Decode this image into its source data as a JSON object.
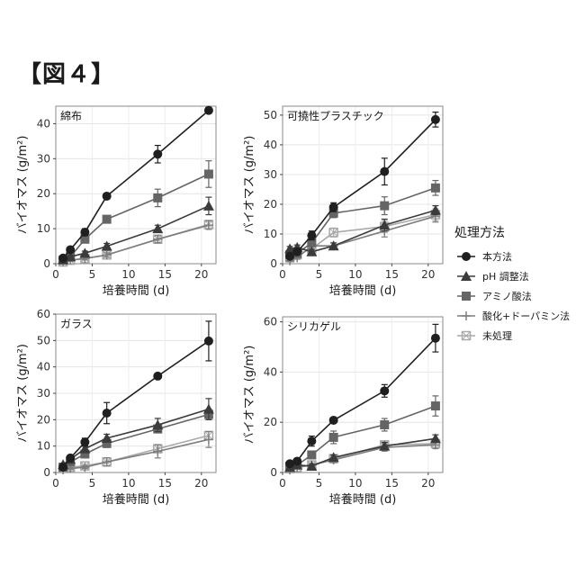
{
  "figure_label": "【図４】",
  "legend": {
    "title": "処理方法",
    "items": [
      {
        "name": "本方法",
        "marker": "circle",
        "color": "#1f1f1f"
      },
      {
        "name": "pH 調整法",
        "marker": "triangle",
        "color": "#3b3b3b"
      },
      {
        "name": "アミノ酸法",
        "marker": "square",
        "color": "#656565"
      },
      {
        "name": "酸化+ドーパミン法",
        "marker": "plus",
        "color": "#7d7d7d"
      },
      {
        "name": "未処理",
        "marker": "square-x",
        "color": "#a9a9a9"
      }
    ]
  },
  "chart_data": [
    {
      "type": "line",
      "title": "綿布",
      "xlabel": "培養時間 (d)",
      "ylabel": "バイオマス (g/m²)",
      "xlim": [
        0,
        22
      ],
      "ylim": [
        0,
        45
      ],
      "xticks": [
        0,
        5,
        10,
        15,
        20
      ],
      "yticks": [
        0,
        10,
        20,
        30,
        40
      ],
      "grid": true,
      "x": [
        1,
        2,
        4,
        7,
        14,
        21
      ],
      "series": [
        {
          "name": "本方法",
          "values": [
            1.6,
            4,
            9,
            19.3,
            31.3,
            43.8
          ],
          "err": [
            0.3,
            0.5,
            1,
            0.8,
            2.5,
            0.5
          ]
        },
        {
          "name": "pH 調整法",
          "values": [
            1.2,
            2,
            3,
            5,
            10,
            16.5
          ],
          "err": [
            0.3,
            0.4,
            0.6,
            0.8,
            1,
            2.5
          ]
        },
        {
          "name": "アミノ酸法",
          "values": [
            1,
            2,
            7,
            12.7,
            18.8,
            25.6
          ],
          "err": [
            0.3,
            0.4,
            1,
            0.8,
            2.5,
            3.8
          ]
        },
        {
          "name": "酸化+ドーパミン法",
          "values": [
            0.5,
            1,
            1.5,
            2.5,
            7,
            11
          ],
          "err": [
            0.2,
            0.3,
            0.4,
            0.6,
            1,
            1.2
          ]
        },
        {
          "name": "未処理",
          "values": [
            0.5,
            1,
            1.5,
            2.5,
            7,
            11.2
          ],
          "err": [
            0.2,
            0.3,
            0.4,
            0.6,
            1,
            1.2
          ]
        }
      ]
    },
    {
      "type": "line",
      "title": "可撓性プラスチック",
      "xlabel": "培養時間 (d)",
      "ylabel": "バイオマス (g/m²)",
      "xlim": [
        0,
        22
      ],
      "ylim": [
        0,
        53
      ],
      "xticks": [
        0,
        5,
        10,
        15,
        20
      ],
      "yticks": [
        0,
        10,
        20,
        30,
        40,
        50
      ],
      "grid": true,
      "x": [
        1,
        2,
        4,
        7,
        14,
        21
      ],
      "series": [
        {
          "name": "本方法",
          "values": [
            2.5,
            4,
            9.5,
            19,
            31,
            48.5
          ],
          "err": [
            0.5,
            0.8,
            1.5,
            1.5,
            4.5,
            2.5
          ]
        },
        {
          "name": "pH 調整法",
          "values": [
            5,
            5.5,
            4,
            6,
            13,
            18
          ],
          "err": [
            0.8,
            0.8,
            0.8,
            1,
            2,
            1.5
          ]
        },
        {
          "name": "アミノ酸法",
          "values": [
            3,
            3.5,
            7,
            17,
            19.5,
            25.5
          ],
          "err": [
            0.5,
            0.6,
            1,
            1.5,
            3,
            2.5
          ]
        },
        {
          "name": "酸化+ドーパミン法",
          "values": [
            1,
            2,
            6,
            6,
            11,
            16
          ],
          "err": [
            0.3,
            0.5,
            1,
            1,
            2,
            2
          ]
        },
        {
          "name": "未処理",
          "values": [
            2,
            3,
            5,
            10.5,
            12.5,
            16.5
          ],
          "err": [
            0.5,
            0.6,
            1,
            1.5,
            2,
            2
          ]
        }
      ]
    },
    {
      "type": "line",
      "title": "ガラス",
      "xlabel": "培養時間 (d)",
      "ylabel": "バイオマス (g/m²)",
      "xlim": [
        0,
        22
      ],
      "ylim": [
        0,
        60
      ],
      "xticks": [
        0,
        5,
        10,
        15,
        20
      ],
      "yticks": [
        0,
        10,
        20,
        30,
        40,
        50,
        60
      ],
      "grid": true,
      "x": [
        1,
        2,
        4,
        7,
        14,
        21
      ],
      "series": [
        {
          "name": "本方法",
          "values": [
            2,
            5.5,
            11.5,
            22.5,
            36.5,
            49.8
          ],
          "err": [
            0.5,
            0.8,
            1.5,
            4,
            0.8,
            7.5
          ]
        },
        {
          "name": "pH 調整法",
          "values": [
            3,
            5,
            9,
            13,
            18,
            24
          ],
          "err": [
            0.5,
            0.8,
            1,
            1.5,
            2.5,
            4
          ]
        },
        {
          "name": "アミノ酸法",
          "values": [
            2,
            4,
            7,
            11,
            16.5,
            22
          ],
          "err": [
            0.5,
            0.8,
            1,
            1.5,
            1.5,
            2
          ]
        },
        {
          "name": "酸化+ドーパミン法",
          "values": [
            1,
            1.5,
            2,
            4,
            8,
            12.5
          ],
          "err": [
            0.3,
            0.4,
            0.5,
            1.5,
            2.5,
            3
          ]
        },
        {
          "name": "未処理",
          "values": [
            1.5,
            2,
            2.5,
            4,
            9,
            14
          ],
          "err": [
            0.3,
            0.4,
            0.5,
            1.5,
            1.5,
            1.5
          ]
        }
      ]
    },
    {
      "type": "line",
      "title": "シリカゲル",
      "xlabel": "培養時間 (d)",
      "ylabel": "バイオマス (g/m²)",
      "xlim": [
        0,
        22
      ],
      "ylim": [
        0,
        62
      ],
      "xticks": [
        0,
        5,
        10,
        15,
        20
      ],
      "yticks": [
        0,
        20,
        40,
        60
      ],
      "grid": true,
      "x": [
        1,
        2,
        4,
        7,
        14,
        21
      ],
      "series": [
        {
          "name": "本方法",
          "values": [
            3.5,
            4.5,
            12.5,
            20.8,
            32.5,
            53.5
          ],
          "err": [
            0.8,
            0.8,
            2,
            1,
            2.5,
            5.5
          ]
        },
        {
          "name": "pH 調整法",
          "values": [
            2,
            3,
            2.5,
            6,
            10.5,
            13.5
          ],
          "err": [
            0.5,
            0.6,
            0.6,
            1,
            1.5,
            1.5
          ]
        },
        {
          "name": "アミノ酸法",
          "values": [
            2.5,
            3,
            7,
            14,
            19,
            26.5
          ],
          "err": [
            0.5,
            0.6,
            1,
            2.5,
            2.5,
            4
          ]
        },
        {
          "name": "酸化+ドーパミン法",
          "values": [
            1,
            2,
            3,
            5,
            10,
            11
          ],
          "err": [
            0.3,
            0.5,
            0.6,
            1,
            1.5,
            1.5
          ]
        },
        {
          "name": "未処理",
          "values": [
            1.5,
            2,
            3,
            5.5,
            11,
            11.5
          ],
          "err": [
            0.4,
            0.5,
            0.6,
            1,
            1.5,
            1.5
          ]
        }
      ]
    }
  ]
}
